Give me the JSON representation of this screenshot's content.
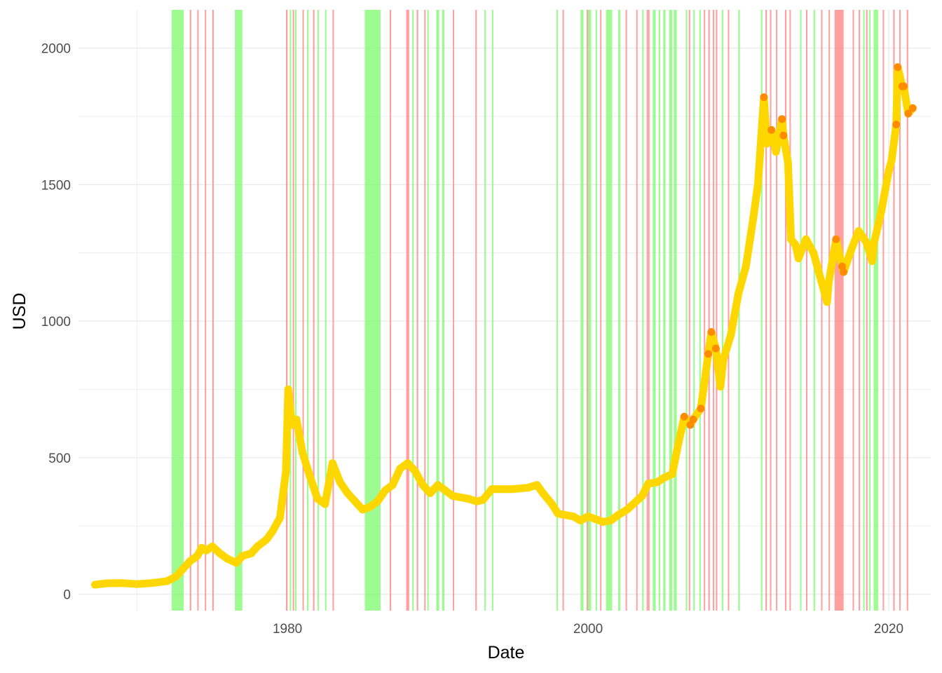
{
  "chart_data": {
    "type": "line",
    "title": "",
    "xlabel": "Date",
    "ylabel": "USD",
    "x_is_date": true,
    "xlim": [
      1966.1,
      2022.8
    ],
    "ylim": [
      -60,
      2140
    ],
    "x_ticks": [
      1970,
      1980,
      1990,
      2000,
      2010,
      2020
    ],
    "x_tick_labels": [
      "1980",
      "2000",
      "2020"
    ],
    "labeled_x_ticks": [
      1980,
      2000,
      2020
    ],
    "y_ticks": [
      0,
      500,
      1000,
      1500,
      2000
    ],
    "y_tick_labels": [
      "0",
      "500",
      "1000",
      "1500",
      "2000"
    ],
    "y_minor": [
      250,
      750,
      1250,
      1750
    ],
    "grid": true,
    "colors": {
      "gold_price": "#ffd700",
      "gold_price_peak": "#ff8c00",
      "bull_band": "#7dfa6e",
      "bear_band": "#ff7f7f",
      "grid": "#ebebeb"
    },
    "series": [
      {
        "x": [
          1967.2,
          1968.0,
          1969.0,
          1970.0,
          1971.0,
          1972.0,
          1972.6,
          1973.0,
          1973.5,
          1974.0,
          1974.3,
          1974.6,
          1975.0,
          1975.5,
          1976.0,
          1976.6,
          1977.0,
          1977.6,
          1978.0,
          1978.6,
          1979.0,
          1979.5,
          1979.9,
          1980.05,
          1980.3,
          1980.6,
          1981.0,
          1981.5,
          1982.0,
          1982.5,
          1983.0,
          1983.5,
          1984.0,
          1984.5,
          1985.0,
          1985.5,
          1986.0,
          1986.5,
          1987.0,
          1987.5,
          1988.0,
          1988.5,
          1989.0,
          1989.5,
          1990.0,
          1990.5,
          1991.0,
          1992.0,
          1992.6,
          1993.0,
          1993.6,
          1994.0,
          1995.0,
          1996.0,
          1996.6,
          1997.0,
          1997.6,
          1998.0,
          1999.0,
          1999.5,
          2000.0,
          2000.5,
          2001.0,
          2001.5,
          2002.0,
          2002.6,
          2003.0,
          2003.6,
          2004.0,
          2004.6,
          2005.0,
          2005.6,
          2006.0,
          2006.4,
          2006.8,
          2007.0,
          2007.5,
          2008.0,
          2008.2,
          2008.5,
          2008.8,
          2009.0,
          2009.5,
          2010.0,
          2010.5,
          2011.0,
          2011.3,
          2011.7,
          2011.9,
          2012.2,
          2012.5,
          2012.9,
          2013.0,
          2013.3,
          2013.5,
          2013.8,
          2014.0,
          2014.5,
          2015.0,
          2015.5,
          2015.9,
          2016.0,
          2016.5,
          2016.9,
          2017.0,
          2017.5,
          2018.0,
          2018.5,
          2018.9,
          2019.0,
          2019.5,
          2020.0,
          2020.2,
          2020.5,
          2020.6,
          2020.9,
          2021.0,
          2021.3,
          2021.6
        ],
        "y": [
          35,
          40,
          41,
          37,
          41,
          48,
          65,
          90,
          120,
          140,
          170,
          160,
          175,
          150,
          130,
          115,
          140,
          150,
          175,
          200,
          230,
          280,
          450,
          750,
          620,
          640,
          520,
          430,
          350,
          330,
          480,
          410,
          370,
          340,
          310,
          320,
          340,
          380,
          400,
          460,
          480,
          450,
          400,
          370,
          400,
          380,
          360,
          350,
          340,
          345,
          385,
          385,
          385,
          390,
          400,
          370,
          330,
          295,
          285,
          270,
          285,
          275,
          265,
          270,
          290,
          310,
          330,
          360,
          405,
          410,
          425,
          440,
          550,
          650,
          620,
          640,
          680,
          880,
          960,
          900,
          760,
          860,
          950,
          1100,
          1200,
          1380,
          1500,
          1820,
          1650,
          1700,
          1620,
          1740,
          1680,
          1580,
          1300,
          1280,
          1230,
          1300,
          1250,
          1150,
          1070,
          1140,
          1300,
          1200,
          1180,
          1260,
          1330,
          1290,
          1220,
          1280,
          1400,
          1550,
          1590,
          1720,
          1930,
          1860,
          1860,
          1760,
          1780
        ]
      }
    ],
    "bands": {
      "bull": [
        [
          1972.3,
          1973.1
        ],
        [
          1976.5,
          1977.0
        ],
        [
          1980.15,
          1980.25
        ],
        [
          1980.5,
          1980.6
        ],
        [
          1981.3,
          1981.4
        ],
        [
          1982.0,
          1982.1
        ],
        [
          1982.5,
          1982.6
        ],
        [
          1985.15,
          1986.2
        ],
        [
          1988.3,
          1988.4
        ],
        [
          1989.3,
          1989.4
        ],
        [
          1989.9,
          1990.1
        ],
        [
          1990.3,
          1990.45
        ],
        [
          1993.1,
          1993.2
        ],
        [
          1993.6,
          1993.7
        ],
        [
          1997.9,
          1998.0
        ],
        [
          1999.5,
          1999.7
        ],
        [
          2000.0,
          2000.2
        ],
        [
          2000.5,
          2000.6
        ],
        [
          2001.2,
          2001.6
        ],
        [
          2002.0,
          2002.15
        ],
        [
          2003.6,
          2003.7
        ],
        [
          2004.3,
          2004.5
        ],
        [
          2004.7,
          2004.8
        ],
        [
          2005.0,
          2005.15
        ],
        [
          2005.4,
          2005.6
        ],
        [
          2005.7,
          2005.9
        ],
        [
          2006.5,
          2006.6
        ],
        [
          2007.0,
          2007.1
        ],
        [
          2007.4,
          2007.5
        ],
        [
          2008.9,
          2009.0
        ],
        [
          2010.0,
          2010.1
        ],
        [
          2011.5,
          2011.6
        ],
        [
          2014.1,
          2014.2
        ],
        [
          2015.0,
          2015.1
        ],
        [
          2018.3,
          2018.4
        ],
        [
          2018.7,
          2018.8
        ],
        [
          2019.0,
          2019.3
        ]
      ],
      "bear": [
        [
          1973.5,
          1973.6
        ],
        [
          1974.0,
          1974.05
        ],
        [
          1974.5,
          1974.55
        ],
        [
          1975.0,
          1975.1
        ],
        [
          1979.9,
          1980.0
        ],
        [
          1980.35,
          1980.4
        ],
        [
          1981.0,
          1981.05
        ],
        [
          1981.7,
          1981.8
        ],
        [
          1983.0,
          1983.05
        ],
        [
          1986.8,
          1986.9
        ],
        [
          1987.9,
          1988.1
        ],
        [
          1988.6,
          1988.7
        ],
        [
          1989.1,
          1989.15
        ],
        [
          1991.0,
          1991.05
        ],
        [
          1992.5,
          1992.6
        ],
        [
          1998.3,
          1998.35
        ],
        [
          1999.9,
          1999.95
        ],
        [
          2000.8,
          2000.85
        ],
        [
          2002.5,
          2002.55
        ],
        [
          2003.2,
          2003.25
        ],
        [
          2003.9,
          2003.95
        ],
        [
          2004.0,
          2004.05
        ],
        [
          2006.7,
          2006.75
        ],
        [
          2007.7,
          2007.75
        ],
        [
          2008.0,
          2008.1
        ],
        [
          2008.3,
          2008.35
        ],
        [
          2008.5,
          2008.6
        ],
        [
          2009.3,
          2009.35
        ],
        [
          2011.8,
          2011.9
        ],
        [
          2012.1,
          2012.15
        ],
        [
          2012.5,
          2012.55
        ],
        [
          2013.1,
          2013.2
        ],
        [
          2013.4,
          2013.45
        ],
        [
          2014.5,
          2014.55
        ],
        [
          2015.5,
          2015.55
        ],
        [
          2016.0,
          2016.05
        ],
        [
          2016.4,
          2017.0
        ],
        [
          2017.6,
          2017.65
        ],
        [
          2018.0,
          2018.1
        ],
        [
          2018.5,
          2018.55
        ],
        [
          2019.6,
          2019.65
        ],
        [
          2020.3,
          2020.4
        ],
        [
          2020.7,
          2020.75
        ],
        [
          2021.2,
          2021.3
        ]
      ]
    }
  }
}
